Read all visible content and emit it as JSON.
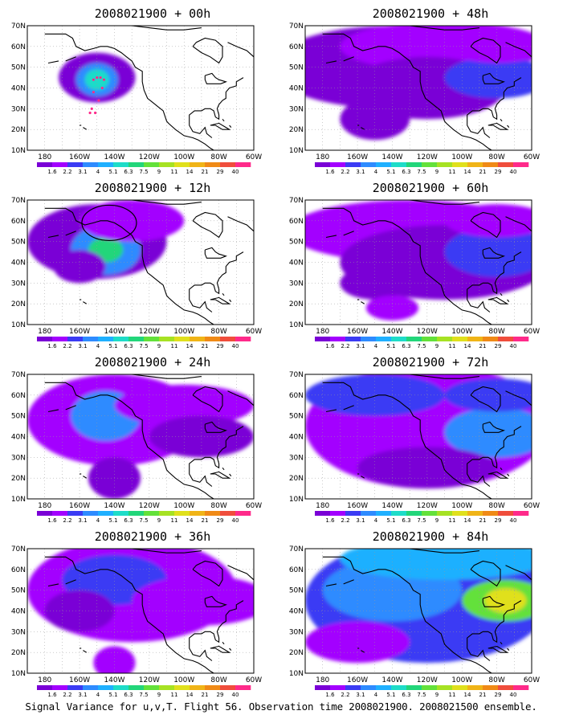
{
  "caption": "Signal Variance for u,v,T. Flight 56. Observation time 2008021900. 2008021500 ensemble.",
  "lat_labels": [
    "10N",
    "20N",
    "30N",
    "40N",
    "50N",
    "60N",
    "70N"
  ],
  "lon_labels": [
    "180",
    "160W",
    "140W",
    "120W",
    "100W",
    "80W",
    "60W"
  ],
  "colorbar": {
    "colors": [
      "#7a00d6",
      "#a300ff",
      "#3b3bf4",
      "#2e8bff",
      "#1fb0ff",
      "#1edcc8",
      "#22d67a",
      "#63e13a",
      "#a6e223",
      "#e0e01c",
      "#f0b417",
      "#f08a16",
      "#f04d3c",
      "#ff2a8a"
    ],
    "labels": [
      "1.6",
      "2.2",
      "3.1",
      "4",
      "5.1",
      "6.3",
      "7.5",
      "9",
      "11",
      "14",
      "21",
      "29",
      "40"
    ]
  },
  "panels": [
    {
      "title": "2008021900 + 00h",
      "lead": 0
    },
    {
      "title": "2008021900 + 48h",
      "lead": 48
    },
    {
      "title": "2008021900 + 12h",
      "lead": 12
    },
    {
      "title": "2008021900 + 60h",
      "lead": 60
    },
    {
      "title": "2008021900 + 24h",
      "lead": 24
    },
    {
      "title": "2008021900 + 72h",
      "lead": 72
    },
    {
      "title": "2008021900 + 36h",
      "lead": 36
    },
    {
      "title": "2008021900 + 84h",
      "lead": 84
    }
  ]
}
